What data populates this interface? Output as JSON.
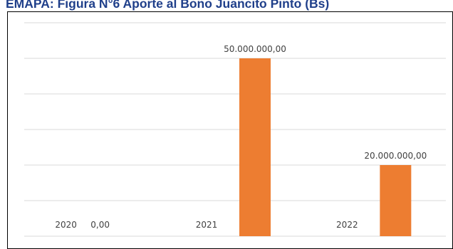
{
  "chart_data": {
    "type": "bar",
    "title": "EMAPA: Figura N°6 Aporte al Bono Juancito Pinto (Bs)",
    "categories": [
      "2020",
      "2021",
      "2022"
    ],
    "values": [
      0,
      50000000,
      20000000
    ],
    "value_labels": [
      "0,00",
      "50.000.000,00",
      "20.000.000,00"
    ],
    "xlabel": "",
    "ylabel": "",
    "ylim": [
      0,
      60000000
    ],
    "grid": true,
    "legend": "none",
    "bar_color": "#ed7d31",
    "grid_color": "#d9d9d9"
  }
}
